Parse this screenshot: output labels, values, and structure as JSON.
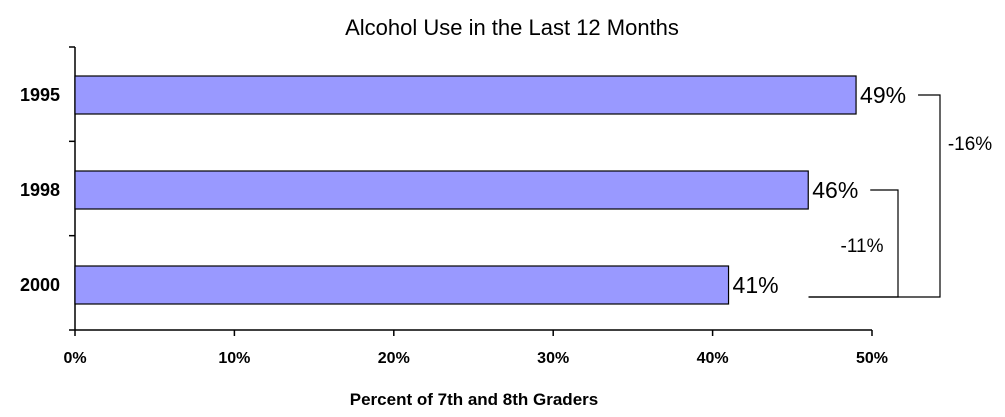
{
  "chart_data": {
    "type": "bar",
    "orientation": "horizontal",
    "title": "Alcohol Use in the Last 12 Months",
    "xlabel": "Percent of 7th and 8th Graders",
    "ylabel": "",
    "categories": [
      "1995",
      "1998",
      "2000"
    ],
    "values": [
      49,
      46,
      41
    ],
    "data_labels": [
      "49%",
      "46%",
      "41%"
    ],
    "xlim": [
      0,
      50
    ],
    "x_ticks": [
      0,
      10,
      20,
      30,
      40,
      50
    ],
    "x_tick_labels": [
      "0%",
      "10%",
      "20%",
      "30%",
      "40%",
      "50%"
    ],
    "grid": false,
    "bar_color": "#9999ff",
    "bar_edge_color": "#000000",
    "annotations": [
      {
        "text": "-16%",
        "from": "1995",
        "to": "2000"
      },
      {
        "text": "-11%",
        "from": "1998",
        "to": "2000"
      }
    ]
  }
}
